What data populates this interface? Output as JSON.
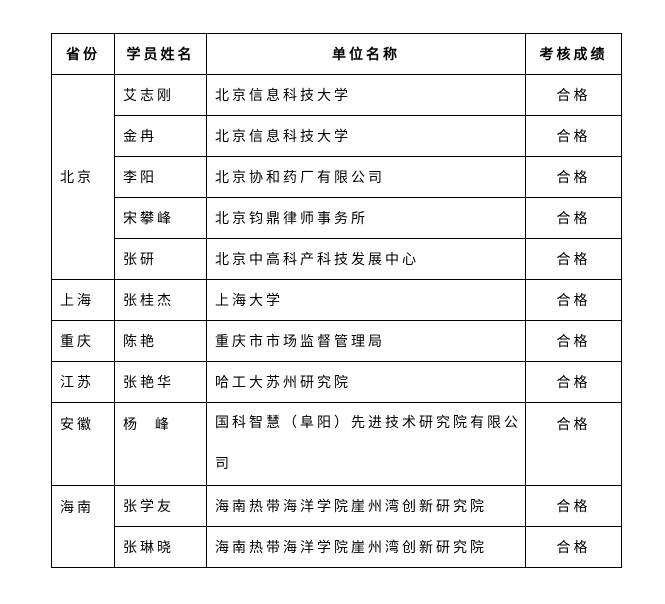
{
  "headers": [
    "省份",
    "学员姓名",
    "单位名称",
    "考核成绩"
  ],
  "groups": [
    {
      "province": "北京",
      "rows": [
        {
          "name": "艾志刚",
          "unit": "北京信息科技大学",
          "grade": "合格"
        },
        {
          "name": "金冉",
          "unit": "北京信息科技大学",
          "grade": "合格"
        },
        {
          "name": "李阳",
          "unit": "北京协和药厂有限公司",
          "grade": "合格"
        },
        {
          "name": "宋攀峰",
          "unit": "北京钧鼎律师事务所",
          "grade": "合格"
        },
        {
          "name": "张研",
          "unit": "北京中高科产科技发展中心",
          "grade": "合格"
        }
      ]
    },
    {
      "province": "上海",
      "rows": [
        {
          "name": "张桂杰",
          "unit": "上海大学",
          "grade": "合格"
        }
      ]
    },
    {
      "province": "重庆",
      "rows": [
        {
          "name": "陈艳",
          "unit": "重庆市市场监督管理局",
          "grade": "合格"
        }
      ]
    },
    {
      "province": "江苏",
      "rows": [
        {
          "name": "张艳华",
          "unit": "哈工大苏州研究院",
          "grade": "合格"
        }
      ]
    },
    {
      "province": "安徽",
      "rows": [
        {
          "name": "杨  峰",
          "unit": "国科智慧（阜阳）先进技术研究院有限公司",
          "grade": "合格"
        }
      ]
    },
    {
      "province": "海南",
      "rows": [
        {
          "name": "张学友",
          "unit": "海南热带海洋学院崖州湾创新研究院",
          "grade": "合格"
        },
        {
          "name": "张琳晓",
          "unit": "海南热带海洋学院崖州湾创新研究院",
          "grade": "合格"
        }
      ]
    }
  ]
}
